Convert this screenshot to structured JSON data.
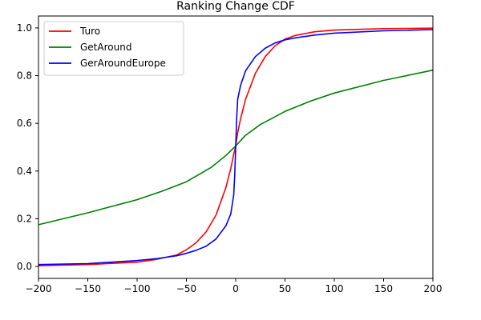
{
  "chart_data": {
    "type": "line",
    "title": "Ranking Change CDF",
    "xlabel": "",
    "ylabel": "",
    "xlim": [
      -200,
      200
    ],
    "ylim": [
      -0.05,
      1.05
    ],
    "x_ticks": [
      -200,
      -150,
      -100,
      -50,
      0,
      50,
      100,
      150,
      200
    ],
    "y_ticks": [
      0.0,
      0.2,
      0.4,
      0.6,
      0.8,
      1.0
    ],
    "x_tick_labels": [
      "−200",
      "−150",
      "−100",
      "−50",
      "0",
      "50",
      "100",
      "150",
      "200"
    ],
    "y_tick_labels": [
      "0.0",
      "0.2",
      "0.4",
      "0.6",
      "0.8",
      "1.0"
    ],
    "grid": false,
    "legend_position": "top-left",
    "series": [
      {
        "name": "Turo",
        "color": "#ff0000",
        "x": [
          -200,
          -150,
          -100,
          -80,
          -60,
          -50,
          -40,
          -30,
          -20,
          -10,
          -5,
          -2,
          0,
          2,
          5,
          10,
          20,
          30,
          40,
          50,
          60,
          80,
          100,
          150,
          200
        ],
        "y": [
          0.003,
          0.008,
          0.018,
          0.03,
          0.048,
          0.07,
          0.1,
          0.145,
          0.215,
          0.33,
          0.41,
          0.47,
          0.505,
          0.56,
          0.62,
          0.7,
          0.81,
          0.88,
          0.925,
          0.953,
          0.968,
          0.984,
          0.991,
          0.997,
          0.999
        ]
      },
      {
        "name": "GetAround",
        "color": "#008000",
        "x": [
          -200,
          -150,
          -100,
          -75,
          -50,
          -25,
          -10,
          0,
          10,
          25,
          50,
          75,
          100,
          150,
          200
        ],
        "y": [
          0.175,
          0.225,
          0.28,
          0.315,
          0.355,
          0.415,
          0.465,
          0.505,
          0.55,
          0.595,
          0.65,
          0.692,
          0.727,
          0.78,
          0.823
        ]
      },
      {
        "name": "GerAroundEurope",
        "color": "#0000ff",
        "x": [
          -200,
          -150,
          -100,
          -80,
          -60,
          -50,
          -40,
          -30,
          -20,
          -10,
          -5,
          -2,
          -1,
          0,
          1,
          2,
          5,
          10,
          20,
          30,
          40,
          50,
          60,
          80,
          100,
          150,
          200
        ],
        "y": [
          0.008,
          0.012,
          0.025,
          0.033,
          0.045,
          0.055,
          0.068,
          0.085,
          0.115,
          0.17,
          0.22,
          0.3,
          0.38,
          0.5,
          0.62,
          0.7,
          0.76,
          0.82,
          0.88,
          0.915,
          0.937,
          0.95,
          0.958,
          0.97,
          0.978,
          0.988,
          0.993
        ]
      }
    ]
  }
}
